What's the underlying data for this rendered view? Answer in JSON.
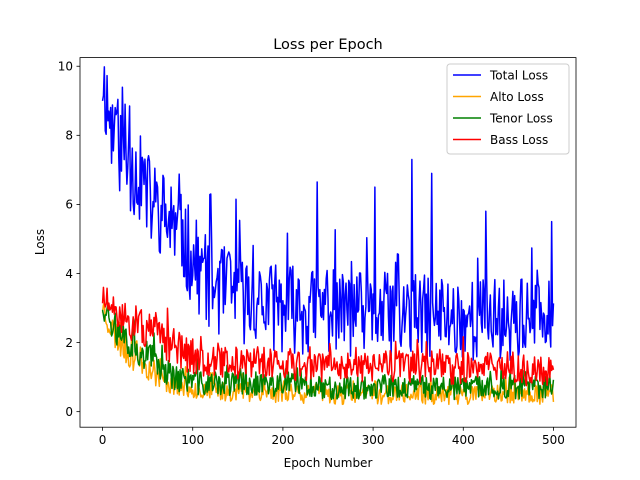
{
  "chart_data": {
    "type": "line",
    "title": "Loss per Epoch",
    "xlabel": "Epoch Number",
    "ylabel": "Loss",
    "xlim": [
      -25,
      525
    ],
    "ylim": [
      -0.45,
      10.25
    ],
    "xticks": [
      0,
      100,
      200,
      300,
      400,
      500
    ],
    "yticks": [
      0,
      2,
      4,
      6,
      8,
      10
    ],
    "grid": false,
    "legend": "top-right",
    "x_range": [
      0,
      500
    ],
    "series": [
      {
        "name": "Total Loss",
        "color": "#0000ff",
        "approx_values": [
          9.7,
          8.2,
          7.6,
          7.1,
          6.8,
          6.2,
          5.9,
          5.6,
          5.2,
          4.9,
          4.4,
          4.0,
          3.7,
          3.5,
          3.4,
          3.3,
          3.2,
          3.2,
          3.1,
          3.0,
          3.0,
          3.0,
          2.9,
          2.9,
          2.9,
          2.9,
          2.9,
          2.8,
          2.8,
          2.8,
          2.8,
          2.8,
          2.8,
          2.8,
          2.8,
          2.8,
          2.7,
          2.8,
          2.8,
          2.7,
          2.7,
          2.7,
          2.7,
          2.7,
          2.7,
          2.7,
          2.7,
          2.7,
          2.6,
          2.6,
          2.6
        ],
        "peaks": [
          [
            15,
            8.6
          ],
          [
            25,
            8.9
          ],
          [
            30,
            8.85
          ],
          [
            76,
            6.5
          ],
          [
            120,
            6.3
          ],
          [
            148,
            6.15
          ],
          [
            238,
            6.65
          ],
          [
            302,
            6.5
          ],
          [
            343,
            7.3
          ],
          [
            365,
            6.9
          ],
          [
            425,
            5.8
          ],
          [
            498,
            5.5
          ]
        ]
      },
      {
        "name": "Alto Loss",
        "color": "#ffa500",
        "approx_values": [
          3.1,
          2.4,
          2.0,
          1.7,
          1.5,
          1.3,
          1.1,
          0.9,
          0.8,
          0.7,
          0.7,
          0.6,
          0.6,
          0.6,
          0.6,
          0.6,
          0.6,
          0.6,
          0.6,
          0.5,
          0.6,
          0.6,
          0.5,
          0.6,
          0.5,
          0.5,
          0.5,
          0.5,
          0.5,
          0.5,
          0.5,
          0.5,
          0.5,
          0.5,
          0.5,
          0.5,
          0.5,
          0.5,
          0.5,
          0.5,
          0.5,
          0.5,
          0.5,
          0.5,
          0.5,
          0.5,
          0.5,
          0.5,
          0.5,
          0.5,
          0.5
        ],
        "peaks": []
      },
      {
        "name": "Tenor Loss",
        "color": "#008000",
        "approx_values": [
          3.2,
          2.6,
          2.3,
          2.0,
          1.8,
          1.6,
          1.4,
          1.2,
          1.0,
          0.9,
          0.9,
          0.8,
          0.8,
          0.8,
          0.8,
          0.8,
          0.8,
          0.8,
          0.8,
          0.7,
          0.8,
          0.8,
          0.7,
          0.8,
          0.7,
          0.7,
          0.7,
          0.7,
          0.7,
          0.7,
          0.7,
          0.7,
          0.7,
          0.7,
          0.7,
          0.7,
          0.7,
          0.7,
          0.7,
          0.7,
          0.7,
          0.7,
          0.7,
          0.7,
          0.7,
          0.7,
          0.7,
          0.7,
          0.7,
          0.7,
          0.7
        ],
        "peaks": []
      },
      {
        "name": "Bass Loss",
        "color": "#ff0000",
        "approx_values": [
          3.4,
          2.8,
          2.7,
          2.6,
          2.5,
          2.3,
          2.2,
          2.0,
          1.9,
          1.7,
          1.6,
          1.5,
          1.5,
          1.5,
          1.4,
          1.4,
          1.4,
          1.4,
          1.4,
          1.3,
          1.4,
          1.4,
          1.3,
          1.4,
          1.3,
          1.3,
          1.3,
          1.3,
          1.3,
          1.3,
          1.3,
          1.3,
          1.3,
          1.3,
          1.3,
          1.3,
          1.3,
          1.3,
          1.3,
          1.2,
          1.3,
          1.3,
          1.2,
          1.3,
          1.2,
          1.2,
          1.2,
          1.2,
          1.2,
          1.2,
          1.2
        ],
        "peaks": []
      }
    ]
  }
}
